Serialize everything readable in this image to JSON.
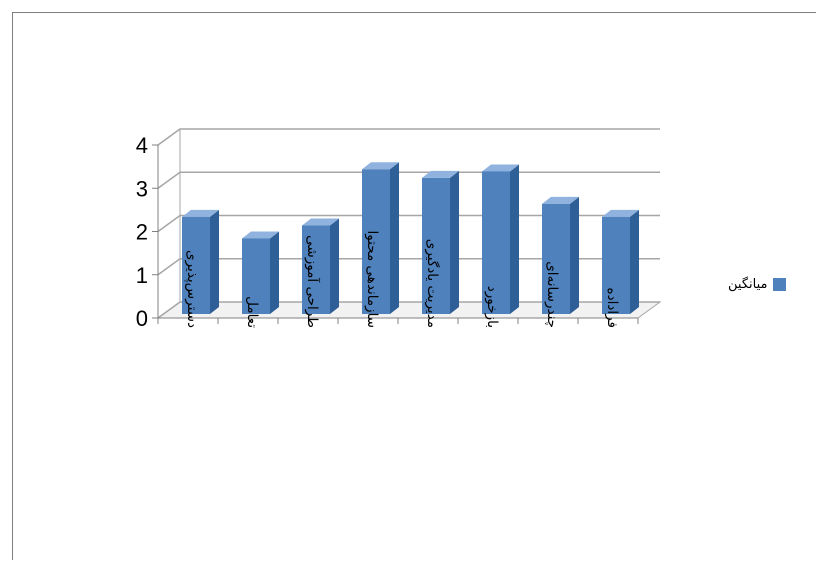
{
  "chart_data": {
    "type": "bar",
    "style": "3d-column",
    "categories": [
      "دسترس‌پذیری",
      "تعامل",
      "طراحی آموزشی",
      "سازماندهی محتوا",
      "مدیریت یادگیری",
      "بازخورد",
      "چندرسانه‌ای",
      "فراداده"
    ],
    "series": [
      {
        "name": "میانگین",
        "values": [
          2.2,
          1.7,
          2.0,
          3.3,
          3.1,
          3.25,
          2.5,
          2.2
        ]
      }
    ],
    "yticks": [
      "0",
      "1",
      "2",
      "3",
      "4"
    ],
    "ylim": [
      0,
      4
    ],
    "grid": true,
    "legend_position": "right",
    "colors": {
      "bar_front": "#4f81bd",
      "bar_side": "#2f5f97",
      "bar_top": "#8fb3de",
      "grid": "#a6a6a6"
    }
  }
}
